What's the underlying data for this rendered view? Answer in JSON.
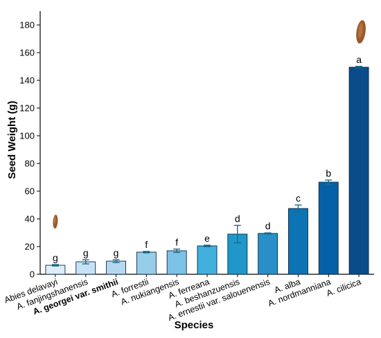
{
  "chart_data": {
    "type": "bar",
    "title": "",
    "xlabel": "Species",
    "ylabel": "Seed Weight (g)",
    "ylim": [
      0,
      190
    ],
    "yticks": [
      0,
      20,
      40,
      60,
      80,
      100,
      120,
      140,
      160,
      180
    ],
    "grid": false,
    "legend": "none",
    "categories": [
      "Abies delavayi",
      "A. fanjingshanensis",
      "A. georgei var. smithii",
      "A. forrestii",
      "A. nukiangensis",
      "A. ferreana",
      "A. beshanzuensis",
      "A. ernestii var. salouenensis",
      "A. alba",
      "A. nordmanniana",
      "A. cilicica"
    ],
    "bold_categories": [
      "A. georgei var. smithii"
    ],
    "values": [
      6.5,
      9,
      9.5,
      16,
      17,
      20.5,
      29,
      29.5,
      47.5,
      66.5,
      149.5
    ],
    "errors": [
      0.5,
      1.5,
      1.0,
      0.5,
      1.2,
      0.5,
      6.3,
      0.4,
      2.5,
      1.5,
      0.6
    ],
    "significance_letters": [
      "g",
      "g",
      "g",
      "f",
      "f",
      "e",
      "d",
      "d",
      "c",
      "b",
      "a"
    ],
    "bar_colors": [
      "#ddeef8",
      "#c6e2f3",
      "#b4d8ef",
      "#96cde9",
      "#7cc2e6",
      "#42b0dc",
      "#1f97c9",
      "#2a8fc6",
      "#0c73b5",
      "#0660a7",
      "#0a4c8a"
    ],
    "error_color": "#1a6b8c",
    "seed_images": [
      {
        "category": "Abies delavayi",
        "value": 38
      },
      {
        "category": "A. cilicica",
        "value": 175
      }
    ]
  }
}
